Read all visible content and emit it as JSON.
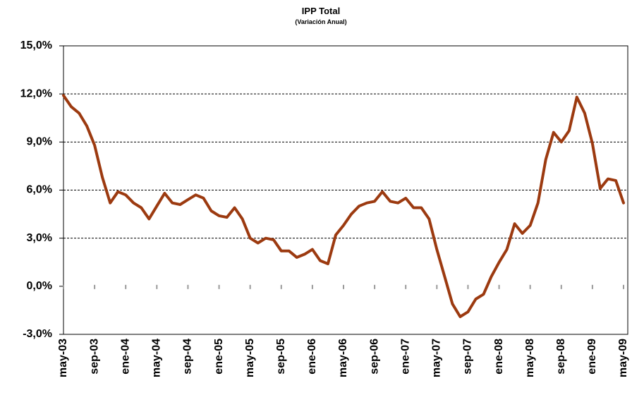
{
  "chart_data": {
    "type": "line",
    "title": "IPP Total",
    "subtitle": "(Variación Anual)",
    "categories": [
      "may-03",
      null,
      null,
      null,
      "sep-03",
      null,
      null,
      null,
      "ene-04",
      null,
      null,
      null,
      "may-04",
      null,
      null,
      null,
      "sep-04",
      null,
      null,
      null,
      "ene-05",
      null,
      null,
      null,
      "may-05",
      null,
      null,
      null,
      "sep-05",
      null,
      null,
      null,
      "ene-06",
      null,
      null,
      null,
      "may-06",
      null,
      null,
      null,
      "sep-06",
      null,
      null,
      null,
      "ene-07",
      null,
      null,
      null,
      "may-07",
      null,
      null,
      null,
      "sep-07",
      null,
      null,
      null,
      "ene-08",
      null,
      null,
      null,
      "may-08",
      null,
      null,
      null,
      "sep-08",
      null,
      null,
      null,
      "ene-09",
      null,
      null,
      null,
      "may-09"
    ],
    "values": [
      11.9,
      11.2,
      10.8,
      10.0,
      8.8,
      6.8,
      5.2,
      5.9,
      5.7,
      5.2,
      4.9,
      4.2,
      5.0,
      5.8,
      5.2,
      5.1,
      5.4,
      5.7,
      5.5,
      4.7,
      4.4,
      4.3,
      4.9,
      4.2,
      3.0,
      2.7,
      3.0,
      2.9,
      2.2,
      2.2,
      1.8,
      2.0,
      2.3,
      1.6,
      1.4,
      3.2,
      3.8,
      4.5,
      5.0,
      5.2,
      5.3,
      5.9,
      5.3,
      5.2,
      5.5,
      4.9,
      4.9,
      4.2,
      2.3,
      0.6,
      -1.1,
      -1.9,
      -1.6,
      -0.8,
      -0.5,
      0.6,
      1.5,
      2.3,
      3.9,
      3.3,
      3.8,
      5.2,
      7.9,
      9.6,
      9.0,
      9.7,
      11.8,
      10.8,
      8.9,
      6.1,
      6.7,
      6.6,
      5.2
    ],
    "color": "#9c3a10",
    "ylim": [
      -3,
      15
    ],
    "yticks": [
      {
        "value": -3,
        "label": "-3,0%"
      },
      {
        "value": 0,
        "label": "0,0%"
      },
      {
        "value": 3,
        "label": "3,0%"
      },
      {
        "value": 6,
        "label": "6,0%"
      },
      {
        "value": 9,
        "label": "9,0%"
      },
      {
        "value": 12,
        "label": "12,0%"
      },
      {
        "value": 15,
        "label": "15,0%"
      }
    ],
    "grid": true
  }
}
